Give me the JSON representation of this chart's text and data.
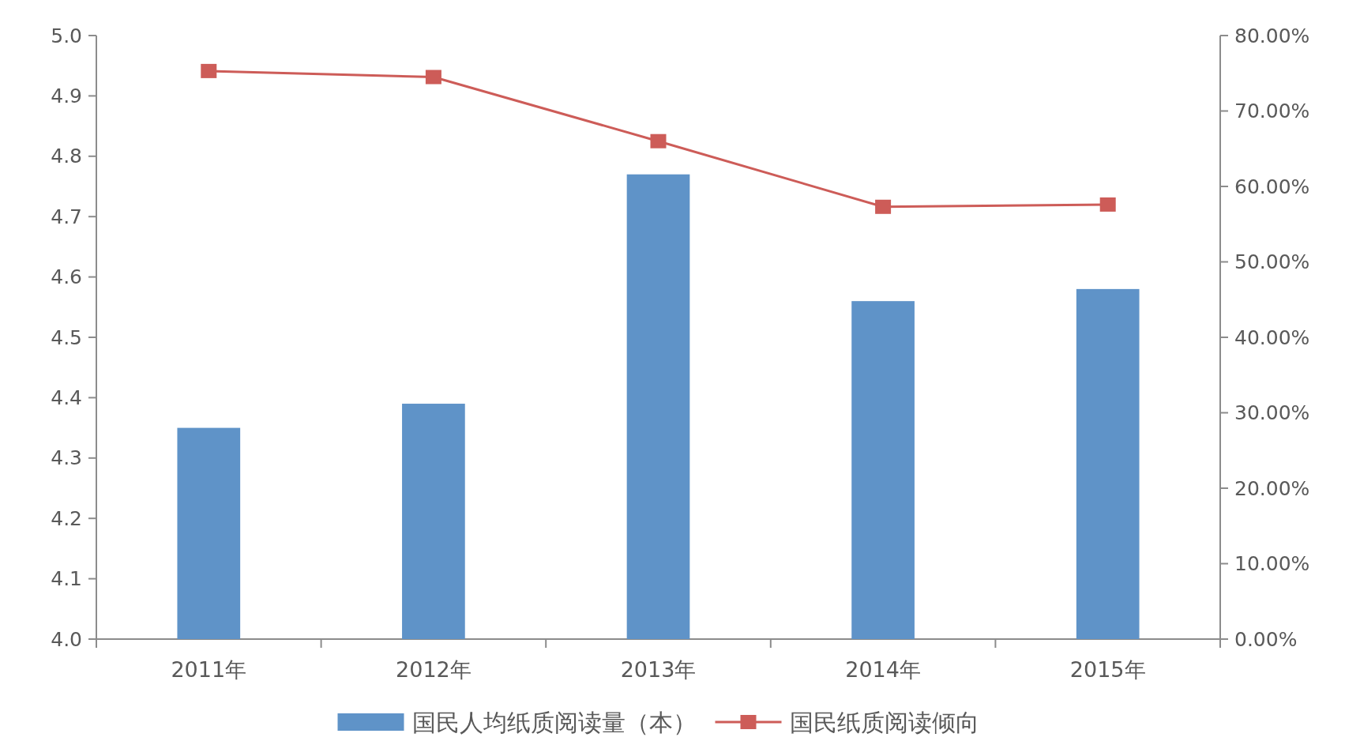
{
  "chart_data": {
    "type": "bar",
    "categories": [
      "2011年",
      "2012年",
      "2013年",
      "2014年",
      "2015年"
    ],
    "series": [
      {
        "name": "国民人均纸质阅读量（本）",
        "color": "#5f93c8",
        "values": [
          4.35,
          4.39,
          4.77,
          4.56,
          4.58
        ]
      },
      {
        "name": "国民纸质阅读倾向",
        "type": "line",
        "axis": "y2",
        "color": "#cd5c58",
        "marker": "square",
        "line_style": "solid",
        "values": [
          75.3,
          74.5,
          66.0,
          57.3,
          57.6
        ]
      }
    ],
    "ylim": [
      4,
      5
    ],
    "yticks": [
      {
        "value": 4,
        "label": "4.0"
      },
      4.1,
      4.2,
      4.3,
      4.4,
      4.5,
      4.6,
      4.7,
      4.8,
      4.9,
      {
        "value": 5,
        "label": "5.0"
      }
    ],
    "y2lim": [
      0,
      80
    ],
    "y2ticks": [
      {
        "value": 0,
        "label": "0.00%"
      },
      {
        "value": 10,
        "label": "10.00%"
      },
      {
        "value": 20,
        "label": "20.00%"
      },
      {
        "value": 30,
        "label": "30.00%"
      },
      {
        "value": 40,
        "label": "40.00%"
      },
      {
        "value": 50,
        "label": "50.00%"
      },
      {
        "value": 60,
        "label": "60.00%"
      },
      {
        "value": 70,
        "label": "70.00%"
      },
      {
        "value": 80,
        "label": "80.00%"
      }
    ],
    "grid": false,
    "legend": "bottom"
  }
}
